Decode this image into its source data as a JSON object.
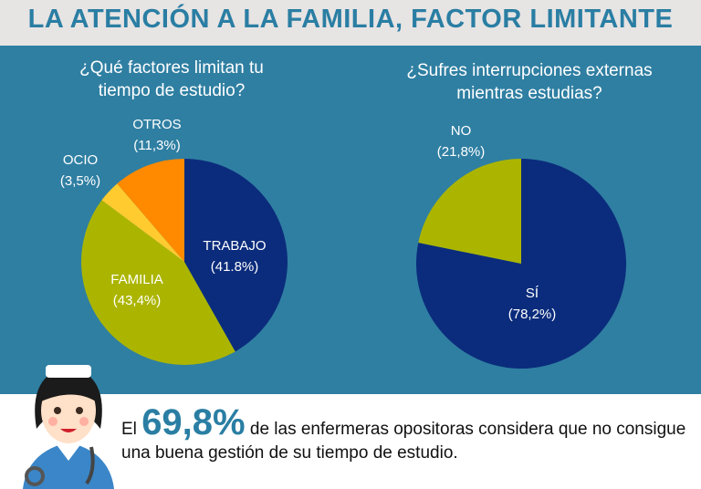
{
  "title": "LA ATENCIÓN A LA FAMILIA, FACTOR LIMITANTE",
  "chart_data": [
    {
      "type": "pie",
      "title": "¿Qué factores limitan tu tiempo de estudio?",
      "categories": [
        "TRABAJO",
        "FAMILIA",
        "OCIO",
        "OTROS"
      ],
      "values": [
        41.8,
        43.4,
        3.5,
        11.3
      ],
      "value_labels": [
        "(41.8%)",
        "(43,4%)",
        "(3,5%)",
        "(11,3%)"
      ],
      "colors": [
        "#0b2c7c",
        "#abb500",
        "#ffcb2f",
        "#ff8a00"
      ]
    },
    {
      "type": "pie",
      "title": "¿Sufres interrupciones externas mientras estudias?",
      "categories": [
        "SÍ",
        "NO"
      ],
      "values": [
        78.2,
        21.8
      ],
      "value_labels": [
        "(78,2%)",
        "(21,8%)"
      ],
      "colors": [
        "#0b2c7c",
        "#abb500"
      ]
    }
  ],
  "footer": {
    "lead": "El",
    "highlight": "69,8%",
    "text": "de las enfermeras opositoras considera que no consigue una buena gestión de su tiempo de estudio."
  }
}
